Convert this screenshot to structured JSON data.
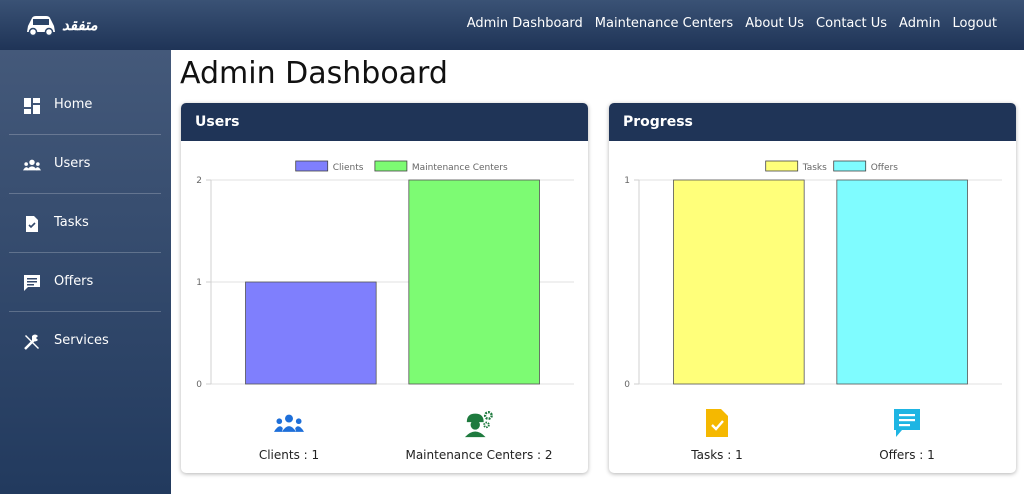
{
  "header": {
    "logo_text": "متفقد",
    "nav": [
      "Admin Dashboard",
      "Maintenance Centers",
      "About Us",
      "Contact Us",
      "Admin",
      "Logout"
    ]
  },
  "sidebar": {
    "items": [
      {
        "label": "Home",
        "icon": "dashboard-icon"
      },
      {
        "label": "Users",
        "icon": "users-icon"
      },
      {
        "label": "Tasks",
        "icon": "task-file-icon"
      },
      {
        "label": "Offers",
        "icon": "message-icon"
      },
      {
        "label": "Services",
        "icon": "tools-icon"
      }
    ]
  },
  "page_title": "Admin Dashboard",
  "users_card": {
    "title": "Users",
    "stats": [
      {
        "label": "Clients : 1",
        "icon": "users-icon",
        "color": "#1e6fd9"
      },
      {
        "label": "Maintenance Centers : 2",
        "icon": "worker-gears-icon",
        "color": "#1e7a3e"
      }
    ]
  },
  "progress_card": {
    "title": "Progress",
    "stats": [
      {
        "label": "Tasks : 1",
        "icon": "task-file-icon",
        "color": "#f5b800"
      },
      {
        "label": "Offers : 1",
        "icon": "message-icon",
        "color": "#1eb5e3"
      }
    ]
  },
  "chart_data": [
    {
      "type": "bar",
      "categories": [
        ""
      ],
      "series": [
        {
          "name": "Clients",
          "values": [
            1
          ],
          "color": "#7f7ffd"
        },
        {
          "name": "Maintenance Centers",
          "values": [
            2
          ],
          "color": "#7dfb73"
        }
      ],
      "ylim": [
        0,
        2
      ],
      "yticks": [
        0,
        1,
        2
      ],
      "legend": "top",
      "grid": true
    },
    {
      "type": "bar",
      "categories": [
        ""
      ],
      "series": [
        {
          "name": "Tasks",
          "values": [
            1
          ],
          "color": "#ffff7a"
        },
        {
          "name": "Offers",
          "values": [
            1
          ],
          "color": "#7ffcff"
        }
      ],
      "ylim": [
        0,
        1
      ],
      "yticks": [
        0,
        1
      ],
      "legend": "top",
      "grid": true
    }
  ]
}
